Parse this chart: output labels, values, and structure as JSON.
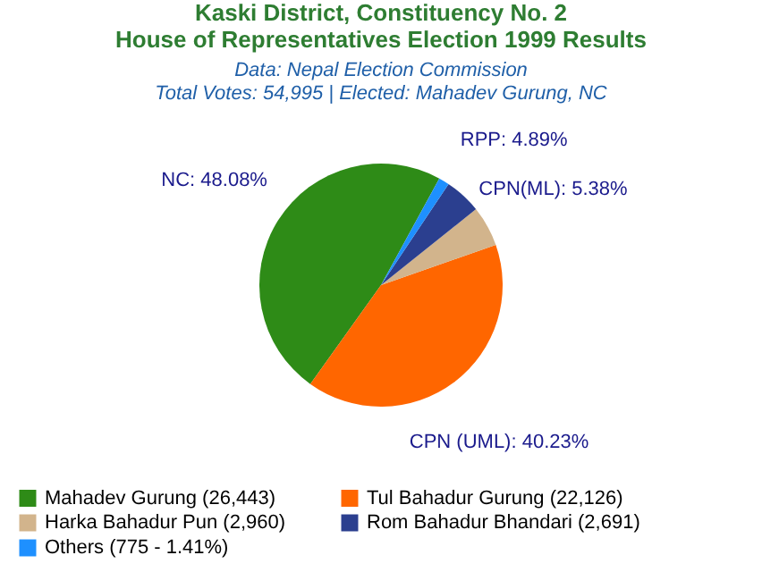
{
  "chart_data": {
    "type": "pie",
    "title": "Kaski District, Constituency No. 2\nHouse of Representatives Election 1999 Results",
    "subtitle": "Data: Nepal Election Commission\nTotal Votes: 54,995 | Elected: Mahadev Gurung, NC",
    "categories": [
      "Mahadev Gurung (26,443)",
      "Tul Bahadur Gurung (22,126)",
      "Harka Bahadur Pun (2,960)",
      "Rom Bahadur Bhandari (2,691)",
      "Others (775 - 1.41%)"
    ],
    "values": [
      48.08,
      40.23,
      5.38,
      4.89,
      1.41
    ],
    "colors": [
      "#2e8b17",
      "#ff6600",
      "#d2b48c",
      "#2b3f8f",
      "#1e90ff"
    ],
    "value_labels": [
      "NC: 48.08%",
      "CPN (UML): 40.23%",
      "CPN(ML): 5.38%",
      "RPP: 4.89%",
      null
    ],
    "legend": "bottom"
  }
}
